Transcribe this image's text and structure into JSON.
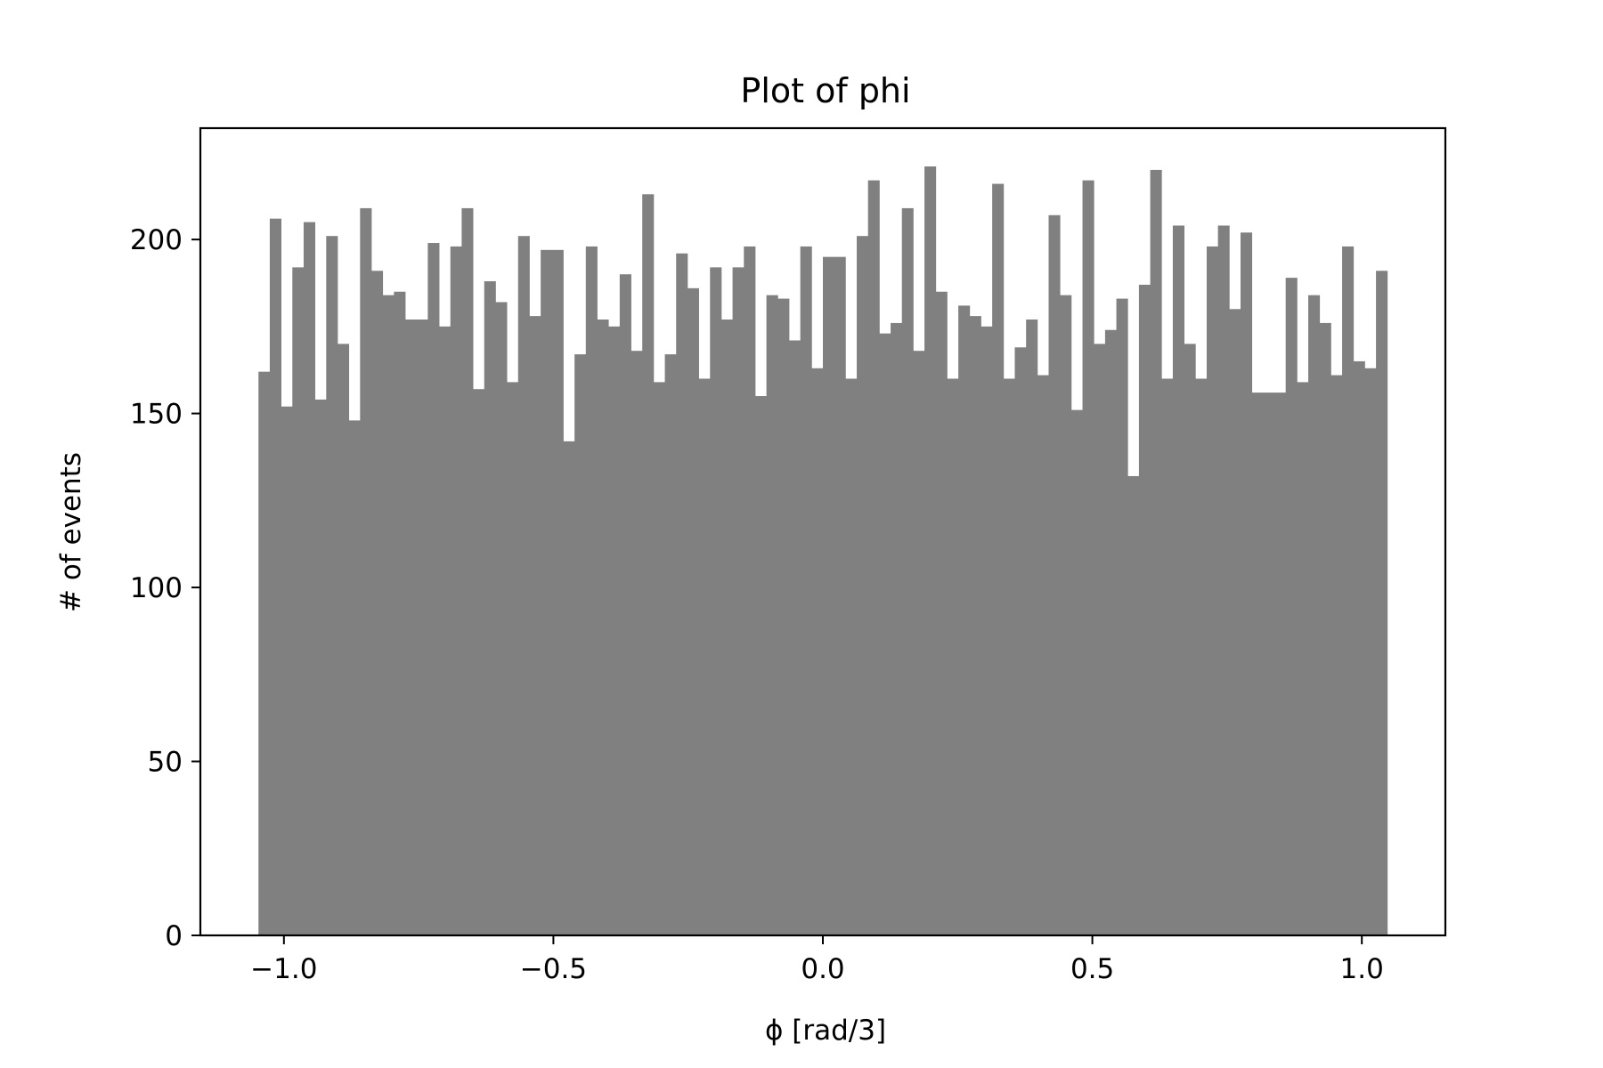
{
  "chart_data": {
    "type": "bar",
    "subtype": "histogram",
    "title": "Plot of phi",
    "xlabel": "ϕ [rad/3]",
    "ylabel": "# of events",
    "xlim": [
      -1.155,
      1.155
    ],
    "ylim": [
      0,
      232
    ],
    "xticks": [
      -1.0,
      -0.5,
      0.0,
      0.5,
      1.0
    ],
    "xtick_labels": [
      "−1.0",
      "−0.5",
      "0.0",
      "0.5",
      "1.0"
    ],
    "yticks": [
      0,
      50,
      100,
      150,
      200
    ],
    "ytick_labels": [
      "0",
      "50",
      "100",
      "150",
      "200"
    ],
    "grid": false,
    "bar_color": "#808080",
    "bin_start": -1.0472,
    "bin_end": 1.0472,
    "bin_count": 100,
    "values": [
      162,
      206,
      152,
      192,
      205,
      154,
      201,
      170,
      148,
      209,
      191,
      184,
      185,
      177,
      177,
      199,
      175,
      198,
      209,
      157,
      188,
      182,
      159,
      201,
      178,
      197,
      197,
      142,
      167,
      198,
      177,
      175,
      190,
      168,
      213,
      159,
      167,
      196,
      186,
      160,
      192,
      177,
      192,
      198,
      155,
      184,
      183,
      171,
      198,
      163,
      195,
      195,
      160,
      201,
      217,
      173,
      176,
      209,
      168,
      221,
      185,
      160,
      181,
      178,
      175,
      216,
      160,
      169,
      177,
      161,
      207,
      184,
      151,
      217,
      170,
      174,
      183,
      132,
      187,
      220,
      160,
      204,
      170,
      160,
      198,
      204,
      180,
      202,
      156,
      156,
      156,
      189,
      159,
      184,
      176,
      161,
      198,
      165,
      163,
      191
    ]
  }
}
